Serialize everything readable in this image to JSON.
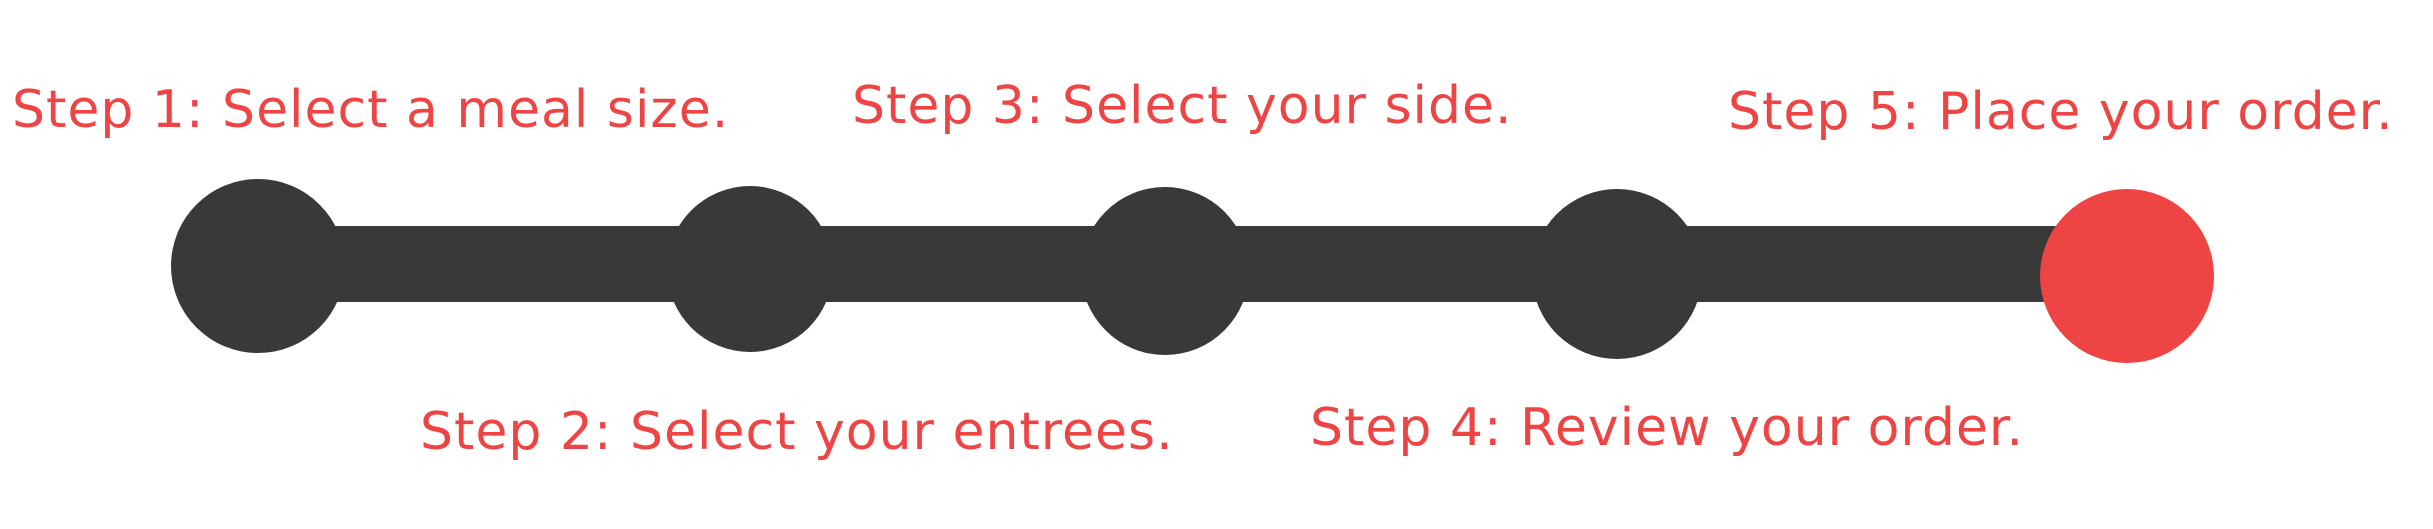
{
  "colors": {
    "node": "#3a3939",
    "active_node": "#ef4444",
    "label": "#ef4444",
    "background": "#ffffff"
  },
  "steps": [
    {
      "label": "Step 1: Select a meal size.",
      "state": "completed"
    },
    {
      "label": "Step 2: Select your entrees.",
      "state": "completed"
    },
    {
      "label": "Step 3: Select your side.",
      "state": "completed"
    },
    {
      "label": "Step 4: Review your order.",
      "state": "completed"
    },
    {
      "label": "Step 5: Place your order.",
      "state": "current"
    }
  ]
}
